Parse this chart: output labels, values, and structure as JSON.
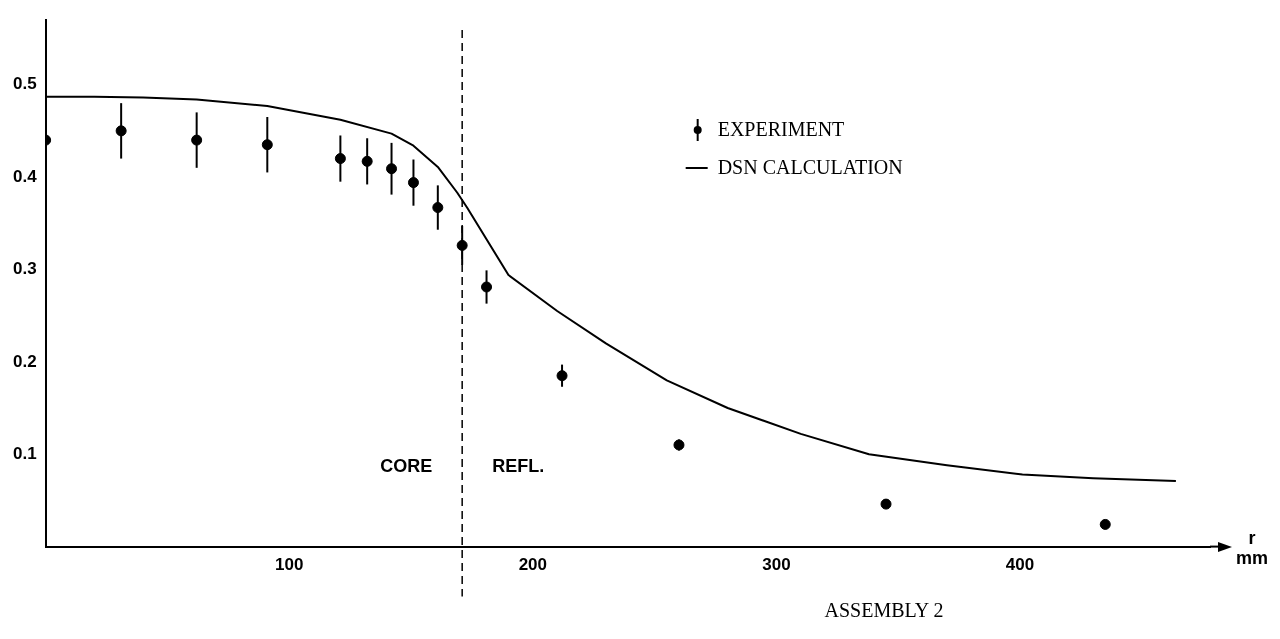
{
  "chart_data": {
    "type": "scatter",
    "title": "ASSEMBLY 2",
    "xlabel": "r mm",
    "xlim": [
      0,
      478
    ],
    "xticks": [
      100,
      200,
      300,
      400
    ],
    "ylim": [
      0,
      0.57
    ],
    "yticks": [
      0.1,
      0.2,
      0.3,
      0.4,
      0.5
    ],
    "grid": false,
    "legend": "right",
    "marker": "circle",
    "ref_lines": [
      {
        "axis": "x",
        "value": 171,
        "label": null,
        "color": "#000000",
        "line_style": "dashed"
      }
    ],
    "annotations": [
      "CORE",
      "REFL."
    ],
    "series": [
      {
        "name": "EXPERIMENT",
        "color": "#000000",
        "x": [
          0,
          31,
          62,
          91,
          121,
          132,
          142,
          151,
          161,
          171,
          181,
          212,
          260,
          345,
          435
        ],
        "values": [
          0.44,
          0.45,
          0.44,
          0.435,
          0.42,
          0.417,
          0.409,
          0.394,
          0.367,
          0.326,
          0.281,
          0.185,
          0.11,
          0.046,
          0.024
        ],
        "errors": [
          null,
          0.03,
          0.03,
          0.03,
          0.025,
          0.025,
          0.028,
          0.025,
          0.024,
          0.021,
          0.018,
          0.012,
          0.006,
          null,
          null
        ]
      },
      {
        "name": "DSN CALCULATION",
        "type": "line",
        "color": "#000000",
        "marker": "none",
        "line_style": "solid",
        "x": [
          0,
          20,
          40,
          62,
          91,
          121,
          142,
          151,
          161,
          169,
          173,
          190,
          210,
          230,
          255,
          280,
          310,
          338,
          370,
          401,
          430,
          464
        ],
        "values": [
          0.487,
          0.487,
          0.486,
          0.484,
          0.477,
          0.462,
          0.447,
          0.434,
          0.411,
          0.383,
          0.367,
          0.294,
          0.255,
          0.22,
          0.18,
          0.15,
          0.122,
          0.1,
          0.088,
          0.078,
          0.074,
          0.071
        ]
      }
    ]
  }
}
